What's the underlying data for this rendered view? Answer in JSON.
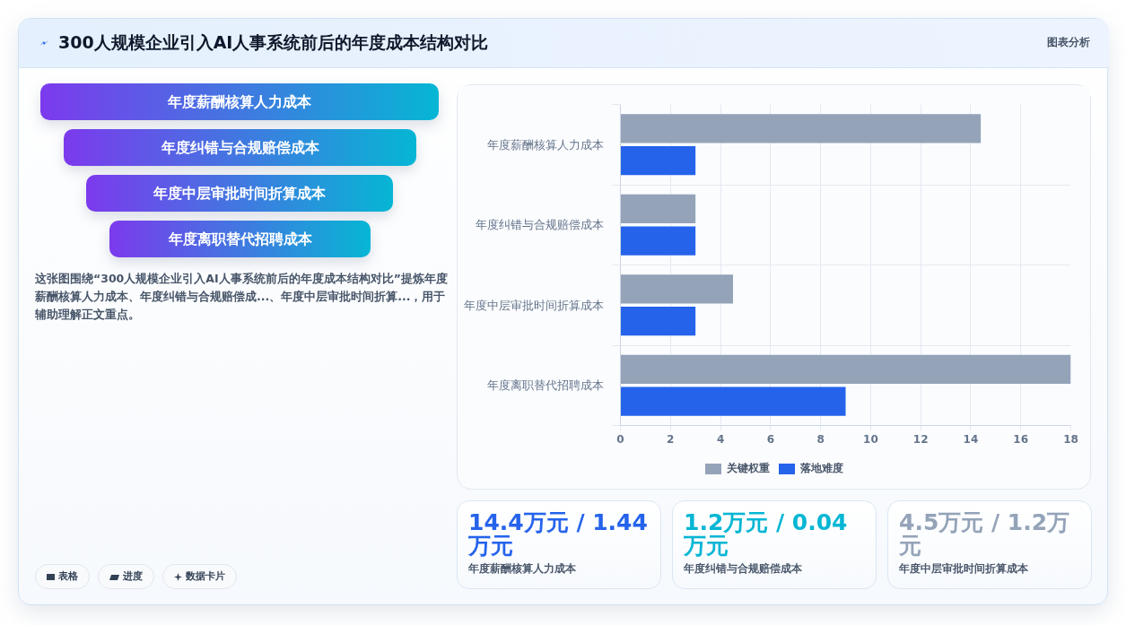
{
  "chart_data": [
    {
      "type": "other",
      "title": "300人规模企业引入AI人事系统前后的年度成本结构对比",
      "categories": [
        "年度薪酬核算人力成本",
        "年度纠错与合规赔偿成本",
        "年度中层审批时间折算成本",
        "年度离职替代招聘成本"
      ],
      "annotations": [
        "图表分析",
        "这张图围绕“300人规模企业引入AI人事系统前后的年度成本结构对比”提炼年度薪酬核算人力成本、年度纠错与合规赔偿成...、年度中层审批时间折算...，用于辅助理解正文重点。",
        "表格",
        "进度",
        "数据卡片"
      ]
    },
    {
      "type": "bar",
      "orientation": "horizontal",
      "categories": [
        "年度薪酬核算人力成本",
        "年度纠错与合规赔偿成本",
        "年度中层审批时间折算成本",
        "年度离职替代招聘成本"
      ],
      "series": [
        {
          "name": "关键权重",
          "color": "#94a3b8",
          "values": [
            14.4,
            3,
            4.5,
            18
          ]
        },
        {
          "name": "落地难度",
          "color": "#2563eb",
          "values": [
            3,
            3,
            3,
            9
          ]
        }
      ],
      "xlim": [
        0,
        18
      ],
      "xticks": [
        0,
        2,
        4,
        6,
        8,
        10,
        12,
        14,
        16,
        18
      ],
      "grid": true,
      "legend": "bottom"
    },
    {
      "type": "other",
      "categories": [
        "年度薪酬核算人力成本",
        "年度纠错与合规赔偿成本",
        "年度中层审批时间折算成本"
      ],
      "annotations": [
        "14.4万元 / 1.44万元",
        "1.2万元 / 0.04万元",
        "4.5万元 / 1.2万元"
      ]
    }
  ]
}
